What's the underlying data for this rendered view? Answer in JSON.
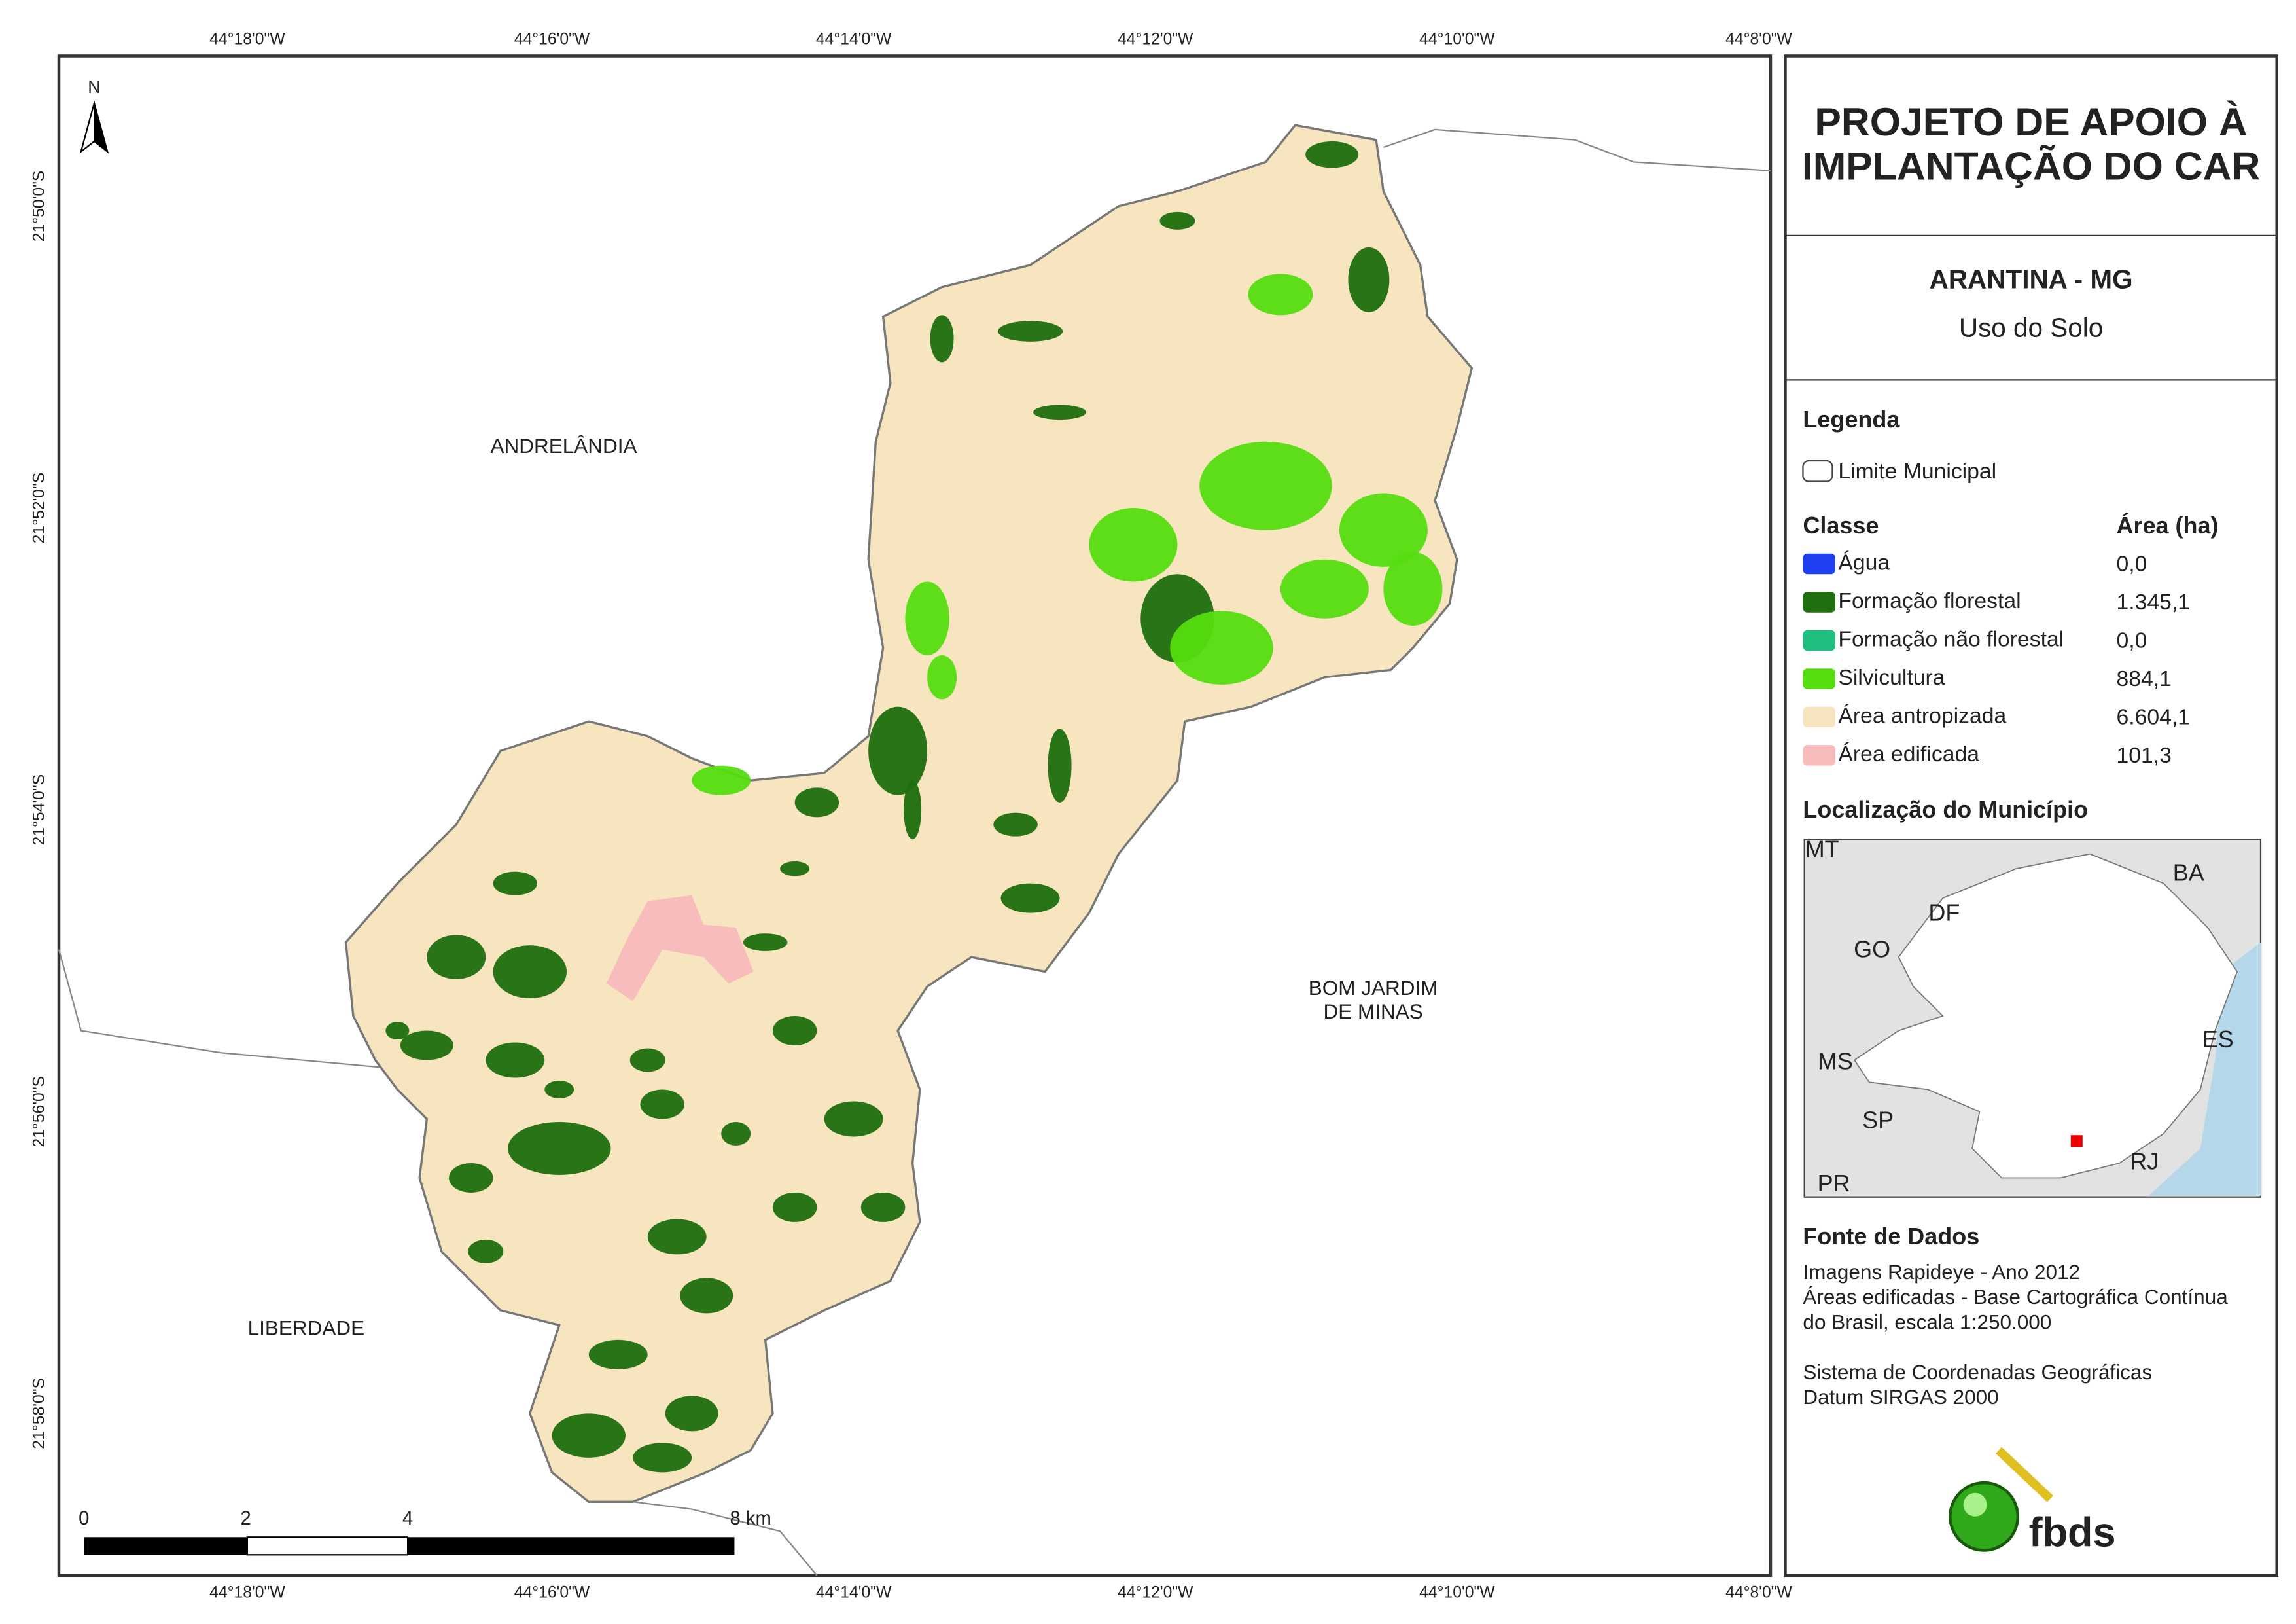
{
  "map": {
    "longitude_labels": [
      "44°18'0\"W",
      "44°16'0\"W",
      "44°14'0\"W",
      "44°12'0\"W",
      "44°10'0\"W",
      "44°8'0\"W"
    ],
    "latitude_labels": [
      "21°50'0\"S",
      "21°52'0\"S",
      "21°54'0\"S",
      "21°56'0\"S",
      "21°58'0\"S"
    ],
    "north": "N",
    "place_labels": [
      {
        "lines": [
          "ANDRELÂNDIA"
        ]
      },
      {
        "lines": [
          "BOM JARDIM",
          "DE MINAS"
        ]
      },
      {
        "lines": [
          "LIBERDADE"
        ]
      }
    ],
    "scale_labels": [
      "0",
      "2",
      "4",
      "8 km"
    ]
  },
  "panel": {
    "title_lines": [
      "PROJETO DE APOIO À",
      "IMPLANTAÇÃO DO CAR"
    ],
    "municipality": "ARANTINA - MG",
    "theme": "Uso do Solo",
    "legend": {
      "title": "Legenda",
      "boundary": "Limite Municipal",
      "class_header": "Classe",
      "area_header": "Área (ha)",
      "classes": [
        {
          "name": "Água",
          "color": "#1f3ff0",
          "area": "0,0"
        },
        {
          "name": "Formação florestal",
          "color": "#1f6e0f",
          "area": "1.345,1"
        },
        {
          "name": "Formação não florestal",
          "color": "#1fbf80",
          "area": "0,0"
        },
        {
          "name": "Silvicultura",
          "color": "#55dd10",
          "area": "884,1"
        },
        {
          "name": "Área antropizada",
          "color": "#f7e5c0",
          "area": "6.604,1"
        },
        {
          "name": "Área edificada",
          "color": "#f9bcbc",
          "area": "101,3"
        }
      ]
    },
    "location": {
      "title": "Localização do Município",
      "labels": [
        "MT",
        "BA",
        "DF",
        "GO",
        "ES",
        "MS",
        "SP",
        "RJ",
        "PR"
      ]
    },
    "sources": {
      "title": "Fonte de Dados",
      "lines": [
        "Imagens Rapideye - Ano 2012",
        "Áreas edificadas - Base Cartográfica Contínua",
        "do Brasil, escala 1:250.000",
        "Sistema de Coordenadas Geográficas",
        "Datum SIRGAS 2000"
      ]
    },
    "logo": "fbds"
  }
}
